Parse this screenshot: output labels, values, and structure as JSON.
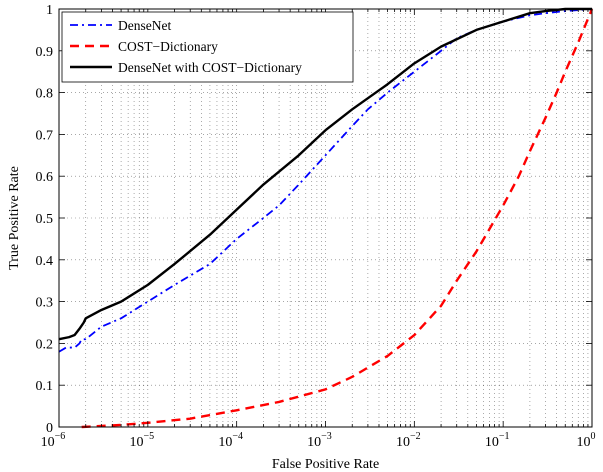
{
  "chart_data": {
    "type": "line",
    "title": "",
    "xlabel": "False Positive Rate",
    "ylabel": "True Positive Rate",
    "xscale": "log",
    "xlim": [
      1e-06,
      1
    ],
    "ylim": [
      0,
      1
    ],
    "grid": true,
    "legend_position": "top-left",
    "x_ticks": [
      {
        "value": 1e-06,
        "base": "10",
        "exp": "−6"
      },
      {
        "value": 1e-05,
        "base": "10",
        "exp": "−5"
      },
      {
        "value": 0.0001,
        "base": "10",
        "exp": "−4"
      },
      {
        "value": 0.001,
        "base": "10",
        "exp": "−3"
      },
      {
        "value": 0.01,
        "base": "10",
        "exp": "−2"
      },
      {
        "value": 0.1,
        "base": "10",
        "exp": "−1"
      },
      {
        "value": 1,
        "base": "10",
        "exp": "0"
      }
    ],
    "y_ticks": [
      {
        "value": 0,
        "label": "0"
      },
      {
        "value": 0.1,
        "label": "0.1"
      },
      {
        "value": 0.2,
        "label": "0.2"
      },
      {
        "value": 0.3,
        "label": "0.3"
      },
      {
        "value": 0.4,
        "label": "0.4"
      },
      {
        "value": 0.5,
        "label": "0.5"
      },
      {
        "value": 0.6,
        "label": "0.6"
      },
      {
        "value": 0.7,
        "label": "0.7"
      },
      {
        "value": 0.8,
        "label": "0.8"
      },
      {
        "value": 0.9,
        "label": "0.9"
      },
      {
        "value": 1,
        "label": "1"
      }
    ],
    "series": [
      {
        "name": "DenseNet",
        "color": "#0000ff",
        "dash": "dash-dot",
        "x": [
          1e-06,
          1.2e-06,
          1.5e-06,
          1.7e-06,
          1.8e-06,
          2e-06,
          3e-06,
          5e-06,
          1e-05,
          2e-05,
          5e-05,
          0.0001,
          0.0002,
          0.0003,
          0.0005,
          0.001,
          0.002,
          0.003,
          0.005,
          0.01,
          0.02,
          0.03,
          0.05,
          0.1,
          0.2,
          0.3,
          0.5,
          1
        ],
        "y": [
          0.18,
          0.19,
          0.19,
          0.2,
          0.21,
          0.21,
          0.24,
          0.26,
          0.3,
          0.34,
          0.39,
          0.45,
          0.5,
          0.53,
          0.58,
          0.65,
          0.72,
          0.76,
          0.8,
          0.85,
          0.9,
          0.93,
          0.95,
          0.97,
          0.985,
          0.99,
          0.995,
          1.0
        ]
      },
      {
        "name": "COST−Dictionary",
        "color": "#ff0000",
        "dash": "dashed",
        "x": [
          1.8e-06,
          5e-06,
          1e-05,
          3e-05,
          0.0001,
          0.0003,
          0.001,
          0.002,
          0.005,
          0.01,
          0.02,
          0.03,
          0.05,
          0.1,
          0.15,
          0.2,
          0.3,
          0.4,
          0.5,
          0.7,
          1
        ],
        "y": [
          0.0,
          0.005,
          0.01,
          0.02,
          0.04,
          0.06,
          0.09,
          0.12,
          0.17,
          0.22,
          0.29,
          0.35,
          0.42,
          0.53,
          0.6,
          0.66,
          0.74,
          0.8,
          0.85,
          0.92,
          1.0
        ]
      },
      {
        "name": "DenseNet with COST−Dictionary",
        "color": "#000000",
        "dash": "solid",
        "x": [
          1e-06,
          1.3e-06,
          1.5e-06,
          1.7e-06,
          1.9e-06,
          2e-06,
          3e-06,
          5e-06,
          1e-05,
          2e-05,
          5e-05,
          0.0001,
          0.0002,
          0.0005,
          0.001,
          0.002,
          0.005,
          0.01,
          0.02,
          0.05,
          0.1,
          0.2,
          0.3,
          0.5,
          1
        ],
        "y": [
          0.21,
          0.215,
          0.22,
          0.235,
          0.25,
          0.26,
          0.28,
          0.3,
          0.34,
          0.39,
          0.46,
          0.52,
          0.58,
          0.65,
          0.71,
          0.76,
          0.82,
          0.87,
          0.91,
          0.95,
          0.97,
          0.99,
          0.995,
          1.0,
          1.0
        ]
      }
    ]
  }
}
